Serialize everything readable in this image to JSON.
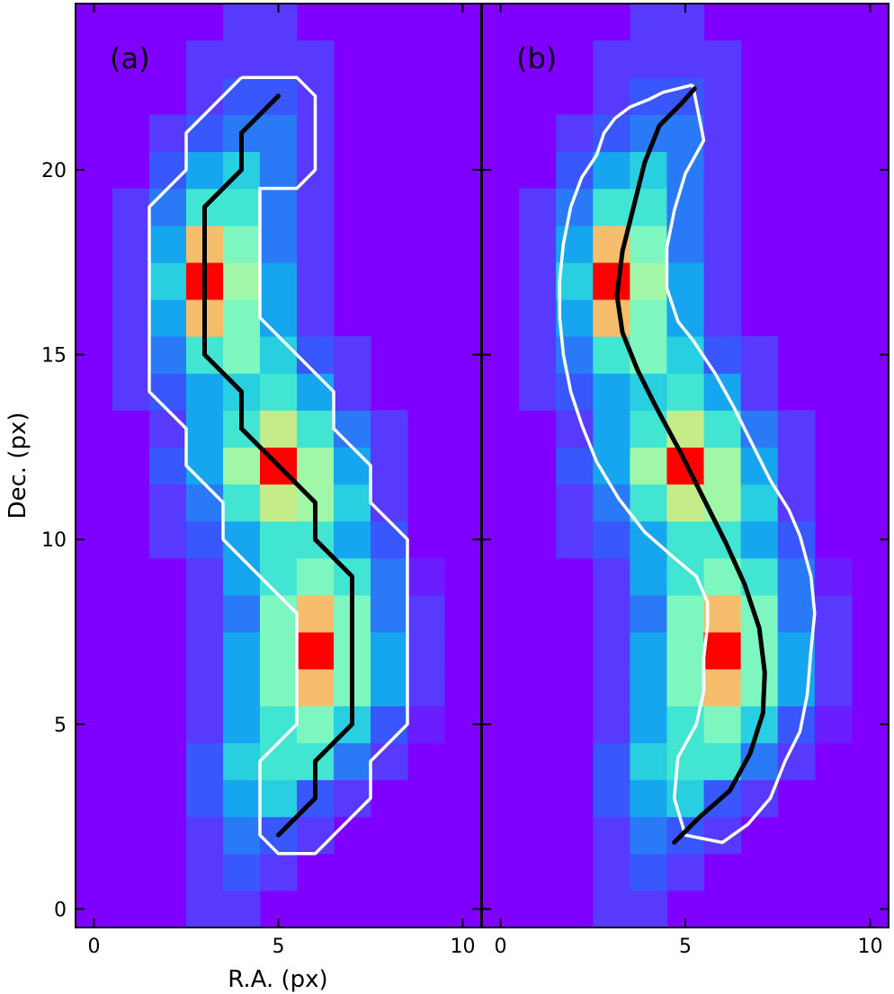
{
  "chart_data": [
    {
      "type": "heatmap",
      "panel_label": "(a)",
      "xlabel": "R.A. (px)",
      "ylabel": "Dec. (px)",
      "xlim": [
        -0.5,
        10.5
      ],
      "ylim": [
        -0.5,
        24.5
      ],
      "x_ticks": [
        0,
        5,
        10
      ],
      "y_ticks": [
        0,
        5,
        10,
        15,
        20
      ],
      "x_tick_labels": [
        "0",
        "5",
        "10"
      ],
      "y_tick_labels": [
        "0",
        "5",
        "10",
        "15",
        "20"
      ],
      "colormap": "rainbow",
      "grid": false,
      "contour": [
        [
          4,
          22.5
        ],
        [
          5.5,
          22.5
        ],
        [
          6,
          22
        ],
        [
          6,
          20
        ],
        [
          5.5,
          19.5
        ],
        [
          4.5,
          19.5
        ],
        [
          4.5,
          16
        ],
        [
          6.5,
          14
        ],
        [
          6.5,
          13
        ],
        [
          7.5,
          12
        ],
        [
          7.5,
          11
        ],
        [
          8.5,
          10
        ],
        [
          8.5,
          5
        ],
        [
          7.5,
          4
        ],
        [
          7.5,
          3
        ],
        [
          6.5,
          2
        ],
        [
          6,
          1.5
        ],
        [
          5,
          1.5
        ],
        [
          4.5,
          2
        ],
        [
          4.5,
          4
        ],
        [
          5.5,
          5
        ],
        [
          5.5,
          8
        ],
        [
          4.5,
          9
        ],
        [
          3.5,
          10
        ],
        [
          3.5,
          11
        ],
        [
          2.5,
          12
        ],
        [
          2.5,
          13
        ],
        [
          1.5,
          14
        ],
        [
          1.5,
          19
        ],
        [
          2.5,
          20
        ],
        [
          2.5,
          21
        ],
        [
          3.5,
          22
        ],
        [
          4,
          22.5
        ]
      ],
      "spine": [
        [
          5,
          22
        ],
        [
          4,
          21
        ],
        [
          4,
          20
        ],
        [
          3,
          19
        ],
        [
          3,
          15
        ],
        [
          4,
          14
        ],
        [
          4,
          13
        ],
        [
          5,
          12
        ],
        [
          6,
          11
        ],
        [
          6,
          10
        ],
        [
          7,
          9
        ],
        [
          7,
          5
        ],
        [
          6,
          4
        ],
        [
          6,
          3
        ],
        [
          5,
          2
        ]
      ]
    },
    {
      "type": "heatmap",
      "panel_label": "(b)",
      "xlabel": "",
      "ylabel": "",
      "xlim": [
        -0.5,
        10.5
      ],
      "ylim": [
        -0.5,
        24.5
      ],
      "x_ticks": [
        0,
        5,
        10
      ],
      "y_ticks": [
        0,
        5,
        10,
        15,
        20
      ],
      "x_tick_labels": [
        "0",
        "5",
        "10"
      ],
      "y_tick_labels": [],
      "colormap": "rainbow",
      "grid": false,
      "contour": [
        [
          5.2,
          22.3
        ],
        [
          4.4,
          22.1
        ],
        [
          4,
          21.9
        ],
        [
          3.5,
          21.7
        ],
        [
          3.1,
          21.4
        ],
        [
          2.8,
          21
        ],
        [
          2.6,
          20.4
        ],
        [
          2.2,
          19.8
        ],
        [
          1.9,
          19
        ],
        [
          1.7,
          18
        ],
        [
          1.6,
          17
        ],
        [
          1.6,
          16
        ],
        [
          1.7,
          15
        ],
        [
          1.9,
          14
        ],
        [
          2.2,
          13.1
        ],
        [
          2.6,
          12.1
        ],
        [
          3.2,
          11.1
        ],
        [
          3.9,
          10.2
        ],
        [
          4.7,
          9.5
        ],
        [
          5.3,
          9
        ],
        [
          5.6,
          8.3
        ],
        [
          5.6,
          7.7
        ],
        [
          5.5,
          6.8
        ],
        [
          5.5,
          5.9
        ],
        [
          5.3,
          5
        ],
        [
          4.8,
          4.1
        ],
        [
          4.7,
          3
        ],
        [
          5,
          2
        ],
        [
          6,
          1.8
        ],
        [
          6.7,
          2.3
        ],
        [
          7.3,
          3
        ],
        [
          7.7,
          4
        ],
        [
          8.1,
          4.8
        ],
        [
          8.3,
          5.8
        ],
        [
          8.4,
          7
        ],
        [
          8.5,
          8
        ],
        [
          8.4,
          9
        ],
        [
          8.1,
          10.1
        ],
        [
          7.8,
          10.8
        ],
        [
          7.3,
          11.6
        ],
        [
          6.8,
          12.6
        ],
        [
          6.3,
          13.6
        ],
        [
          5.8,
          14.5
        ],
        [
          5.2,
          15.4
        ],
        [
          4.8,
          15.9
        ],
        [
          4.5,
          16.8
        ],
        [
          4.5,
          17.9
        ],
        [
          4.7,
          18.9
        ],
        [
          5,
          19.9
        ],
        [
          5.5,
          20.8
        ],
        [
          5.2,
          22.3
        ]
      ],
      "spine": [
        [
          5.25,
          22.2
        ],
        [
          4.9,
          21.8
        ],
        [
          4.3,
          21.2
        ],
        [
          3.9,
          20.2
        ],
        [
          3.6,
          19
        ],
        [
          3.3,
          17.8
        ],
        [
          3.15,
          16.6
        ],
        [
          3.3,
          15.6
        ],
        [
          3.7,
          14.6
        ],
        [
          4.2,
          13.6
        ],
        [
          4.9,
          12.3
        ],
        [
          5.5,
          11.1
        ],
        [
          6.1,
          9.9
        ],
        [
          6.6,
          8.8
        ],
        [
          7,
          7.6
        ],
        [
          7.15,
          6.4
        ],
        [
          7.1,
          5.3
        ],
        [
          6.75,
          4.2
        ],
        [
          6.2,
          3.2
        ],
        [
          5.4,
          2.5
        ],
        [
          4.7,
          1.8
        ]
      ]
    }
  ]
}
